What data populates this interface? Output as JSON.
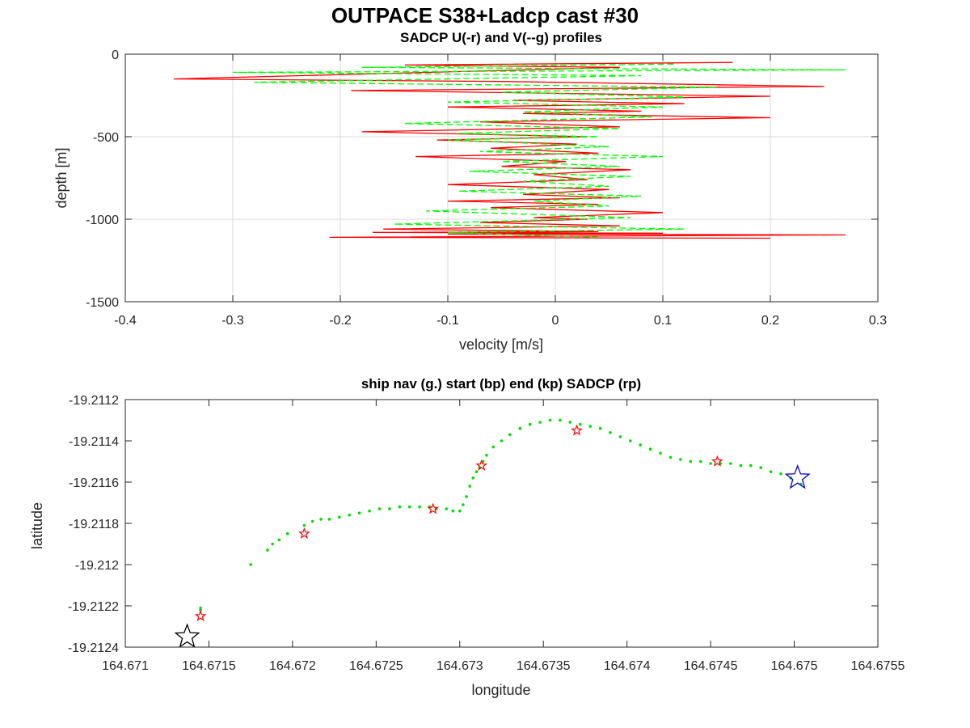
{
  "figure": {
    "title": "OUTPACE S38+Ladcp cast #30"
  },
  "chart_data": [
    {
      "type": "line",
      "title": "SADCP U(-r) and V(--g) profiles",
      "xlabel": "velocity [m/s]",
      "ylabel": "depth [m]",
      "xlim": [
        -0.4,
        0.3
      ],
      "ylim": [
        -1500,
        0
      ],
      "xticks": [
        -0.4,
        -0.3,
        -0.2,
        -0.1,
        0,
        0.1,
        0.2,
        0.3
      ],
      "yticks": [
        0,
        -500,
        -1000,
        -1500
      ],
      "grid": true,
      "series": [
        {
          "style": "solid",
          "color": "#ff0000",
          "x": [
            0.165,
            -0.14,
            0.06,
            -0.355,
            -0.05,
            0.25,
            -0.19,
            0.2,
            -0.04,
            0.12,
            -0.1,
            0.08,
            -0.03,
            0.2,
            -0.07,
            0.06,
            -0.18,
            0.03,
            -0.11,
            0.02,
            -0.06,
            0.04,
            -0.13,
            0.01,
            -0.05,
            0.07,
            -0.02,
            0.03,
            -0.1,
            0.05,
            -0.03,
            0.06,
            -0.1,
            0.04,
            -0.06,
            0.1,
            -0.02,
            0.03,
            -0.07,
            0.06,
            -0.16,
            0.04,
            -0.17,
            0.1,
            -0.1,
            0.27,
            -0.21,
            0.2
          ],
          "y": [
            -50,
            -65,
            -80,
            -150,
            -165,
            -195,
            -220,
            -255,
            -280,
            -300,
            -320,
            -345,
            -360,
            -385,
            -410,
            -440,
            -470,
            -500,
            -520,
            -545,
            -570,
            -600,
            -620,
            -650,
            -680,
            -700,
            -730,
            -760,
            -790,
            -820,
            -850,
            -870,
            -890,
            -910,
            -930,
            -960,
            -990,
            -1000,
            -1020,
            -1040,
            -1060,
            -1075,
            -1080,
            -1085,
            -1090,
            -1095,
            -1110,
            -1115
          ]
        },
        {
          "style": "dashed",
          "color": "#00ff00",
          "x": [
            0.11,
            -0.18,
            0.27,
            -0.3,
            0.08,
            -0.28,
            0.15,
            -0.05,
            0.12,
            -0.1,
            0.1,
            -0.03,
            0.09,
            -0.14,
            0.06,
            -0.09,
            0.04,
            -0.1,
            0.05,
            -0.07,
            0.1,
            -0.05,
            0.06,
            -0.08,
            0.07,
            -0.03,
            0.05,
            -0.09,
            0.08,
            -0.02,
            0.05,
            -0.12,
            0.07,
            -0.15,
            0.12,
            -0.1,
            0.04
          ],
          "y": [
            -60,
            -80,
            -95,
            -110,
            -130,
            -170,
            -200,
            -230,
            -260,
            -290,
            -320,
            -350,
            -380,
            -420,
            -450,
            -480,
            -500,
            -520,
            -560,
            -590,
            -620,
            -650,
            -680,
            -710,
            -740,
            -770,
            -800,
            -830,
            -860,
            -890,
            -920,
            -950,
            -990,
            -1030,
            -1060,
            -1080,
            -1110
          ]
        }
      ]
    },
    {
      "type": "scatter",
      "title": "ship nav (g.) start (bp) end (kp) SADCP (rp)",
      "xlabel": "longitude",
      "ylabel": "latitude",
      "xlim": [
        164.671,
        164.6755
      ],
      "ylim": [
        -19.2124,
        -19.2112
      ],
      "xticks": [
        164.671,
        164.6715,
        164.672,
        164.6725,
        164.673,
        164.6735,
        164.674,
        164.6745,
        164.675,
        164.6755
      ],
      "xtick_labels": [
        "164.671",
        "164.6715",
        "164.672",
        "164.6725",
        "164.673",
        "164.6735",
        "164.674",
        "164.6745",
        "164.675",
        "164.6755"
      ],
      "yticks": [
        -19.2112,
        -19.2114,
        -19.2116,
        -19.2118,
        -19.212,
        -19.2122,
        -19.2124
      ],
      "ytick_labels": [
        "-19.2112",
        "-19.2114",
        "-19.2116",
        "-19.2118",
        "-19.212",
        "-19.2122",
        "-19.2124"
      ],
      "grid": false,
      "ship_nav": {
        "color": "#00dd00",
        "points": [
          [
            164.67145,
            -19.21221
          ],
          [
            164.67145,
            -19.21222
          ],
          [
            164.67175,
            -19.212
          ],
          [
            164.67185,
            -19.21193
          ],
          [
            164.67188,
            -19.2119
          ],
          [
            164.67192,
            -19.21188
          ],
          [
            164.67197,
            -19.21185
          ],
          [
            164.67207,
            -19.21181
          ],
          [
            164.67212,
            -19.21179
          ],
          [
            164.67217,
            -19.21178
          ],
          [
            164.67222,
            -19.21178
          ],
          [
            164.67228,
            -19.21177
          ],
          [
            164.67234,
            -19.21176
          ],
          [
            164.6724,
            -19.21175
          ],
          [
            164.67246,
            -19.21174
          ],
          [
            164.67252,
            -19.21173
          ],
          [
            164.67258,
            -19.21173
          ],
          [
            164.67264,
            -19.21172
          ],
          [
            164.6727,
            -19.21172
          ],
          [
            164.67276,
            -19.21172
          ],
          [
            164.67282,
            -19.21172
          ],
          [
            164.67286,
            -19.21173
          ],
          [
            164.67292,
            -19.21173
          ],
          [
            164.67296,
            -19.21174
          ],
          [
            164.673,
            -19.21174
          ],
          [
            164.67302,
            -19.21171
          ],
          [
            164.67304,
            -19.21167
          ],
          [
            164.67306,
            -19.21162
          ],
          [
            164.67308,
            -19.21158
          ],
          [
            164.6731,
            -19.21155
          ],
          [
            164.67312,
            -19.21153
          ],
          [
            164.67314,
            -19.2115
          ],
          [
            164.67316,
            -19.21147
          ],
          [
            164.6732,
            -19.21143
          ],
          [
            164.67325,
            -19.2114
          ],
          [
            164.6733,
            -19.21137
          ],
          [
            164.67336,
            -19.21134
          ],
          [
            164.67342,
            -19.21132
          ],
          [
            164.67348,
            -19.21131
          ],
          [
            164.67354,
            -19.2113
          ],
          [
            164.6736,
            -19.2113
          ],
          [
            164.67366,
            -19.21131
          ],
          [
            164.67372,
            -19.21132
          ],
          [
            164.67378,
            -19.21133
          ],
          [
            164.67384,
            -19.21134
          ],
          [
            164.6739,
            -19.21136
          ],
          [
            164.67396,
            -19.21138
          ],
          [
            164.67402,
            -19.2114
          ],
          [
            164.67408,
            -19.21142
          ],
          [
            164.67414,
            -19.21144
          ],
          [
            164.6742,
            -19.21146
          ],
          [
            164.67426,
            -19.21148
          ],
          [
            164.67432,
            -19.21149
          ],
          [
            164.67438,
            -19.2115
          ],
          [
            164.67444,
            -19.2115
          ],
          [
            164.6745,
            -19.21151
          ],
          [
            164.67456,
            -19.21151
          ],
          [
            164.67462,
            -19.21151
          ],
          [
            164.67468,
            -19.21152
          ],
          [
            164.67474,
            -19.21152
          ],
          [
            164.6748,
            -19.21153
          ],
          [
            164.67486,
            -19.21155
          ],
          [
            164.67492,
            -19.21156
          ],
          [
            164.67498,
            -19.21158
          ],
          [
            164.67504,
            -19.21161
          ]
        ]
      },
      "start": {
        "color": "#0000cc",
        "point": [
          164.67502,
          -19.21158
        ]
      },
      "end": {
        "color": "#000000",
        "point": [
          164.67137,
          -19.21235
        ]
      },
      "sadcp": {
        "color": "#ff0000",
        "points": [
          [
            164.67145,
            -19.21225
          ],
          [
            164.67207,
            -19.21185
          ],
          [
            164.67284,
            -19.21173
          ],
          [
            164.67313,
            -19.21152
          ],
          [
            164.6737,
            -19.21135
          ],
          [
            164.67454,
            -19.2115
          ]
        ]
      }
    }
  ]
}
